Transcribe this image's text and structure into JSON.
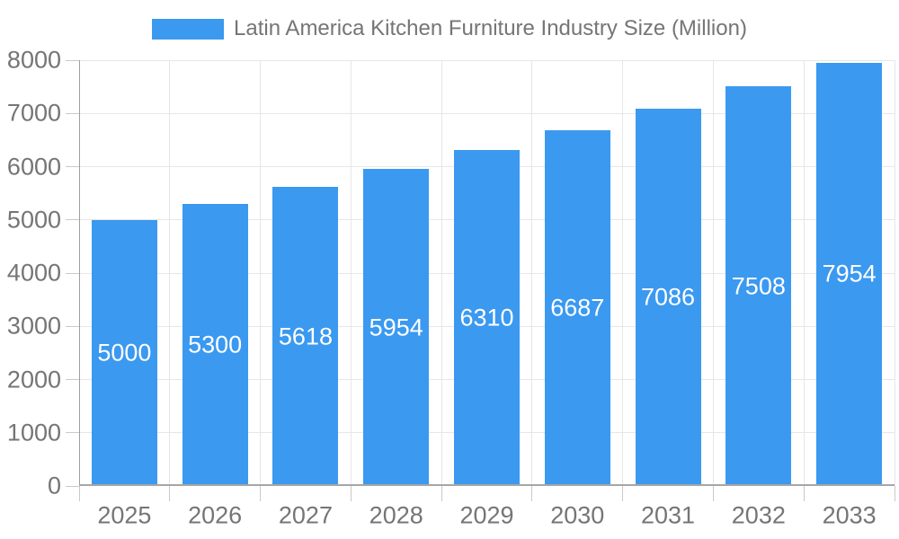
{
  "legend": {
    "label": "Latin America Kitchen Furniture Industry Size (Million)"
  },
  "chart_data": {
    "type": "bar",
    "title": "Latin America Kitchen Furniture Industry Size (Million)",
    "categories": [
      "2025",
      "2026",
      "2027",
      "2028",
      "2029",
      "2030",
      "2031",
      "2032",
      "2033"
    ],
    "values": [
      5000,
      5300,
      5618,
      5954,
      6310,
      6687,
      7086,
      7508,
      7954
    ],
    "series_name": "Latin America Kitchen Furniture Industry Size (Million)",
    "xlabel": "",
    "ylabel": "",
    "ylim": [
      0,
      8000
    ],
    "y_ticks": [
      0,
      1000,
      2000,
      3000,
      4000,
      5000,
      6000,
      7000,
      8000
    ],
    "bar_value_labels": "inside-center",
    "grid": "both",
    "legend_position": "top-center"
  },
  "colors": {
    "bar": "#3B99F0",
    "axis_text": "#757575",
    "bar_label_text": "#ffffff",
    "gridline": "#e6e6e6",
    "axis_line": "#a6a6a6",
    "tick": "#c9c9c9",
    "background": "#ffffff"
  }
}
